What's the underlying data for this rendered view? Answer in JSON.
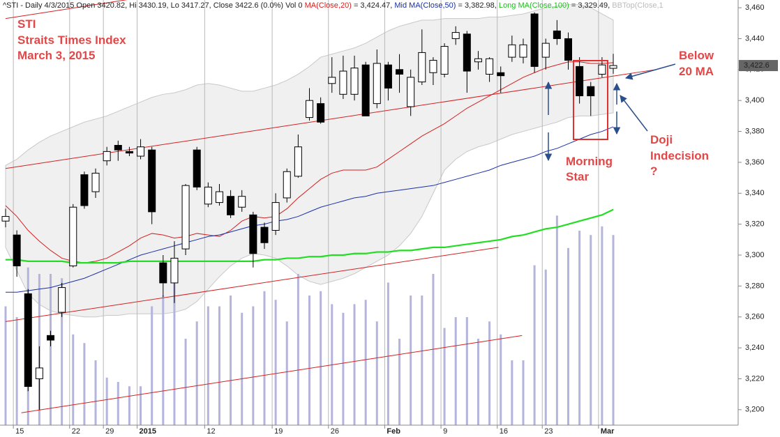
{
  "chart_data": {
    "type": "candlestick",
    "header": [
      "^STI - Daily 4/3/2015 Open 3420.82, Hi 3430.19, Lo 3417.27, Close 3422.6 (0.0%) Vol 0",
      "= 3,424.47,",
      "Mid",
      "= 3,382.98,",
      "Long",
      "= 3,329.49,",
      "BBTop(Close,1"
    ],
    "annotations": {
      "title": [
        "STI",
        "Straits Times Index",
        "March 3, 2015"
      ],
      "below": [
        "Below",
        "20 MA"
      ],
      "morning": [
        "Morning",
        "Star"
      ],
      "doji": [
        "Doji",
        "Indecision",
        "?"
      ]
    },
    "categories": [
      null,
      "15",
      null,
      null,
      null,
      null,
      "22",
      null,
      null,
      "29",
      null,
      null,
      "2015",
      null,
      null,
      null,
      null,
      null,
      "12",
      null,
      null,
      null,
      null,
      null,
      "19",
      null,
      null,
      null,
      null,
      "26",
      null,
      null,
      null,
      null,
      "Feb",
      null,
      null,
      null,
      null,
      "9",
      null,
      null,
      null,
      null,
      "16",
      null,
      null,
      null,
      "23",
      null,
      null,
      null,
      null,
      "Mar",
      null
    ],
    "open": [
      3322,
      3313,
      3275,
      3220,
      3248,
      3263,
      3293,
      3352,
      3341,
      3361,
      3371,
      3367,
      3364,
      3368,
      3295,
      3282,
      3304,
      3368,
      3333,
      3334,
      3338,
      3331,
      3326,
      3318,
      3316,
      3337,
      3351,
      3389,
      3398,
      3411,
      3404,
      3404,
      3423,
      3398,
      3423,
      3420,
      3396,
      3412,
      3418,
      3417,
      3440,
      3443,
      3425,
      3417,
      3418,
      3428,
      3428,
      3456,
      3428,
      3445,
      3440,
      3422,
      3409,
      3417,
      3420.82
    ],
    "high": [
      3330,
      3316,
      3278,
      3241,
      3251,
      3282,
      3333,
      3354,
      3356,
      3370,
      3374,
      3370,
      3375,
      3370,
      3300,
      3309,
      3346,
      3370,
      3347,
      3346,
      3342,
      3342,
      3328,
      3321,
      3340,
      3356,
      3378,
      3408,
      3402,
      3428,
      3429,
      3429,
      3425,
      3433,
      3425,
      3430,
      3420,
      3446,
      3428,
      3437,
      3448,
      3445,
      3432,
      3428,
      3422,
      3442,
      3440,
      3457,
      3440,
      3452,
      3444,
      3428,
      3412,
      3428,
      3430.19
    ],
    "low": [
      3318,
      3286,
      3212,
      3200,
      3241,
      3260,
      3292,
      3330,
      3337,
      3358,
      3361,
      3364,
      3362,
      3320,
      3273,
      3269,
      3300,
      3342,
      3331,
      3332,
      3324,
      3328,
      3292,
      3304,
      3313,
      3334,
      3350,
      3387,
      3385,
      3405,
      3401,
      3400,
      3390,
      3395,
      3400,
      3405,
      3390,
      3410,
      3410,
      3415,
      3436,
      3405,
      3420,
      3412,
      3405,
      3425,
      3424,
      3418,
      3420,
      3436,
      3420,
      3398,
      3390,
      3415,
      3417.27
    ],
    "close": [
      3325,
      3293,
      3215,
      3227,
      3245,
      3279,
      3331,
      3332,
      3353,
      3367,
      3368,
      3366,
      3370,
      3328,
      3282,
      3298,
      3345,
      3344,
      3344,
      3341,
      3326,
      3338,
      3301,
      3308,
      3334,
      3354,
      3370,
      3400,
      3386,
      3415,
      3419,
      3421,
      3390,
      3424,
      3408,
      3417,
      3415,
      3431,
      3426,
      3435,
      3444,
      3419,
      3427,
      3427,
      3416,
      3436,
      3436,
      3422,
      3437,
      3440,
      3426,
      3403,
      3403,
      3423,
      3422.6
    ],
    "up_color": "#ffffff",
    "down_color": "#000000",
    "lines": [
      {
        "name": "MA(Close,20)",
        "color": "#d42020",
        "values": [
          3332,
          3325,
          3316,
          3309,
          3303,
          3298,
          3296,
          3295,
          3296,
          3298,
          3302,
          3306,
          3311,
          3314,
          3313,
          3311,
          3312,
          3314,
          3313,
          3312,
          3316,
          3322,
          3325,
          3324,
          3325,
          3330,
          3337,
          3343,
          3349,
          3353,
          3355,
          3355,
          3355,
          3357,
          3362,
          3367,
          3372,
          3377,
          3381,
          3385,
          3390,
          3395,
          3399,
          3403,
          3407,
          3411,
          3415,
          3418,
          3421,
          3423,
          3425,
          3425,
          3424,
          3424,
          3424.47
        ]
      },
      {
        "name": "MA(Close,50)",
        "color": "#1a2fa8",
        "values": [
          3276,
          3276,
          3277,
          3278,
          3279,
          3281,
          3283,
          3285,
          3288,
          3291,
          3294,
          3297,
          3300,
          3302,
          3304,
          3306,
          3308,
          3310,
          3312,
          3313,
          3315,
          3317,
          3319,
          3320,
          3322,
          3323,
          3325,
          3328,
          3331,
          3333,
          3335,
          3337,
          3338,
          3340,
          3341,
          3342,
          3343,
          3344,
          3345,
          3347,
          3349,
          3351,
          3353,
          3355,
          3358,
          3360,
          3362,
          3364,
          3367,
          3369,
          3372,
          3375,
          3378,
          3380,
          3382.98
        ]
      },
      {
        "name": "MA(Close,100)",
        "color": "#22dd22",
        "values": [
          3297,
          3297,
          3296,
          3296,
          3296,
          3296,
          3295,
          3295,
          3295,
          3295,
          3295,
          3296,
          3296,
          3296,
          3296,
          3296,
          3296,
          3296,
          3296,
          3296,
          3296,
          3296,
          3296,
          3297,
          3297,
          3298,
          3298,
          3299,
          3299,
          3300,
          3300,
          3301,
          3301,
          3302,
          3302,
          3303,
          3303,
          3304,
          3305,
          3305,
          3306,
          3307,
          3308,
          3309,
          3310,
          3312,
          3313,
          3315,
          3317,
          3318,
          3320,
          3322,
          3324,
          3326,
          3329.49
        ]
      }
    ],
    "band": {
      "color": "#c8c8c8",
      "upper": [
        3358,
        3362,
        3368,
        3373,
        3377,
        3380,
        3383,
        3386,
        3388,
        3390,
        3393,
        3396,
        3399,
        3402,
        3404,
        3405,
        3407,
        3410,
        3411,
        3410,
        3408,
        3406,
        3406,
        3408,
        3410,
        3413,
        3417,
        3422,
        3428,
        3430,
        3432,
        3434,
        3437,
        3441,
        3445,
        3448,
        3450,
        3452,
        3452,
        3453,
        3453,
        3453,
        3453,
        3454,
        3454,
        3455,
        3456,
        3458,
        3460,
        3461,
        3462,
        3462,
        3460,
        3456,
        3452
      ],
      "lower": [
        3305,
        3290,
        3275,
        3268,
        3264,
        3262,
        3261,
        3260,
        3260,
        3261,
        3261,
        3262,
        3262,
        3262,
        3262,
        3263,
        3265,
        3270,
        3278,
        3286,
        3293,
        3298,
        3301,
        3300,
        3298,
        3293,
        3287,
        3283,
        3281,
        3283,
        3285,
        3288,
        3292,
        3296,
        3300,
        3306,
        3314,
        3325,
        3340,
        3355,
        3362,
        3367,
        3370,
        3372,
        3375,
        3378,
        3380,
        3382,
        3384,
        3386,
        3389,
        3390,
        3390,
        3391,
        3392
      ]
    },
    "volume": {
      "color": "#b4b4dc",
      "ylim": [
        0,
        100
      ],
      "values": [
        55,
        50,
        73,
        70,
        70,
        68,
        42,
        38,
        30,
        22,
        20,
        18,
        18,
        55,
        60,
        68,
        40,
        48,
        55,
        55,
        60,
        52,
        55,
        62,
        58,
        48,
        70,
        60,
        62,
        56,
        52,
        56,
        58,
        48,
        66,
        40,
        60,
        60,
        70,
        45,
        50,
        50,
        40,
        48,
        42,
        30,
        30,
        74,
        72,
        97,
        82,
        90,
        88,
        92,
        88
      ]
    },
    "trendlines": [
      {
        "color": "#d42020",
        "x": [
          0,
          12.4
        ],
        "y": [
          3453,
          3467
        ]
      },
      {
        "color": "#d42020",
        "x": [
          0,
          57.8
        ],
        "y": [
          3356,
          3420
        ]
      },
      {
        "color": "#d42020",
        "x": [
          0,
          43.8
        ],
        "y": [
          3257,
          3305
        ]
      },
      {
        "color": "#d42020",
        "x": [
          1.4,
          45.9
        ],
        "y": [
          3198,
          3248
        ]
      }
    ],
    "last_price": {
      "value": 3422.6,
      "label": "3,422.6"
    },
    "ylim": [
      3190,
      3465
    ],
    "yticks": [
      {
        "value": 3200,
        "label": "3,200"
      },
      {
        "value": 3220,
        "label": "3,220"
      },
      {
        "value": 3240,
        "label": "3,240"
      },
      {
        "value": 3260,
        "label": "3,260"
      },
      {
        "value": 3280,
        "label": "3,280"
      },
      {
        "value": 3300,
        "label": "3,300"
      },
      {
        "value": 3320,
        "label": "3,320"
      },
      {
        "value": 3340,
        "label": "3,340"
      },
      {
        "value": 3360,
        "label": "3,360"
      },
      {
        "value": 3380,
        "label": "3,380"
      },
      {
        "value": 3400,
        "label": "3,400"
      },
      {
        "value": 3420,
        "label": "3,420"
      },
      {
        "value": 3440,
        "label": "3,440"
      },
      {
        "value": 3460,
        "label": "3,460"
      }
    ],
    "grid": true
  }
}
